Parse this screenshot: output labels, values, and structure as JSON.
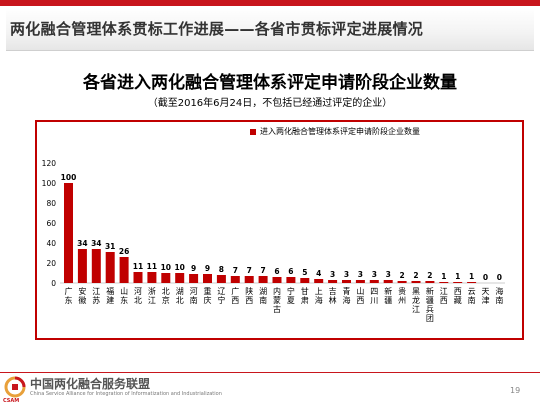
{
  "slide": {
    "title": "两化融合管理体系贯标工作进展——各省市贯标评定进展情况",
    "page_number": "19"
  },
  "footer": {
    "org_name": "中国两化融合服务联盟",
    "org_name_en": "China Service Alliance for Integration of Informatization and Industrialization",
    "logo_text": "CSAM"
  },
  "chart_data": {
    "type": "bar",
    "title": "各省进入两化融合管理体系评定申请阶段企业数量",
    "subtitle": "（截至2016年6月24日，不包括已经通过评定的企业）",
    "legend": [
      "进入两化融合管理体系评定申请阶段企业数量"
    ],
    "legend_position": "top-right",
    "color": "#c00000",
    "ylim": [
      0,
      120
    ],
    "yticks": [
      "0",
      "20",
      "40",
      "60",
      "80",
      "100",
      "120"
    ],
    "grid": false,
    "categories": [
      "广东",
      "安徽",
      "江苏",
      "福建",
      "山东",
      "河北",
      "浙江",
      "北京",
      "湖北",
      "河南",
      "重庆",
      "辽宁",
      "广西",
      "陕西",
      "湖南",
      "内蒙古",
      "宁夏",
      "甘肃",
      "上海",
      "吉林",
      "青海",
      "山西",
      "四川",
      "新疆",
      "贵州",
      "黑龙江",
      "新疆兵团",
      "江西",
      "西藏",
      "云南",
      "天津",
      "海南"
    ],
    "values": [
      100,
      34,
      34,
      31,
      26,
      11,
      11,
      10,
      10,
      9,
      9,
      8,
      7,
      7,
      7,
      6,
      6,
      5,
      4,
      3,
      3,
      3,
      3,
      3,
      2,
      2,
      2,
      1,
      1,
      1,
      0,
      0
    ],
    "data_labels": [
      "100",
      "34",
      "34",
      "31",
      "26",
      "11",
      "11",
      "10",
      "10",
      "9",
      "9",
      "8",
      "7",
      "7",
      "7",
      "6",
      "6",
      "5",
      "4",
      "3",
      "3",
      "3",
      "3",
      "3",
      "2",
      "2",
      "2",
      "1",
      "1",
      "1",
      "0",
      "0"
    ]
  }
}
